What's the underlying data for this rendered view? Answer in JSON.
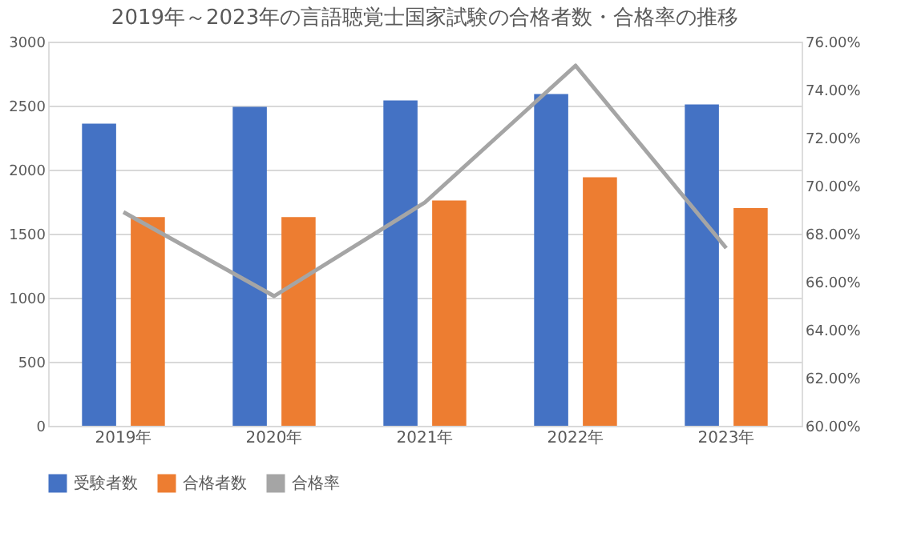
{
  "chart_data": {
    "type": "bar",
    "title": "2019年～2023年の言語聴覚士国家試験の合格者数・合格率の推移",
    "categories": [
      "2019年",
      "2020年",
      "2021年",
      "2022年",
      "2023年"
    ],
    "series": [
      {
        "name": "受験者数",
        "color": "#4472c4",
        "values": [
          2360,
          2490,
          2540,
          2590,
          2510
        ]
      },
      {
        "name": "合格者数",
        "color": "#ed7d31",
        "values": [
          1630,
          1630,
          1760,
          1940,
          1700
        ]
      },
      {
        "name": "合格率",
        "color": "#a5a5a5",
        "type": "line",
        "axis": "y2",
        "values": [
          68.9,
          65.4,
          69.3,
          75.0,
          67.4
        ]
      }
    ],
    "ylim": [
      0,
      3000
    ],
    "yticks": [
      0,
      500,
      1000,
      1500,
      2000,
      2500,
      3000
    ],
    "y2lim": [
      60,
      76
    ],
    "y2ticks": [
      {
        "value": 60,
        "label": "60.00%"
      },
      {
        "value": 62,
        "label": "62.00%"
      },
      {
        "value": 64,
        "label": "64.00%"
      },
      {
        "value": 66,
        "label": "66.00%"
      },
      {
        "value": 68,
        "label": "68.00%"
      },
      {
        "value": 70,
        "label": "70.00%"
      },
      {
        "value": 72,
        "label": "72.00%"
      },
      {
        "value": 74,
        "label": "74.00%"
      },
      {
        "value": 76,
        "label": "76.00%"
      }
    ],
    "grid": "y",
    "legend": "bottom",
    "marker": "none",
    "line_style": "solid"
  }
}
